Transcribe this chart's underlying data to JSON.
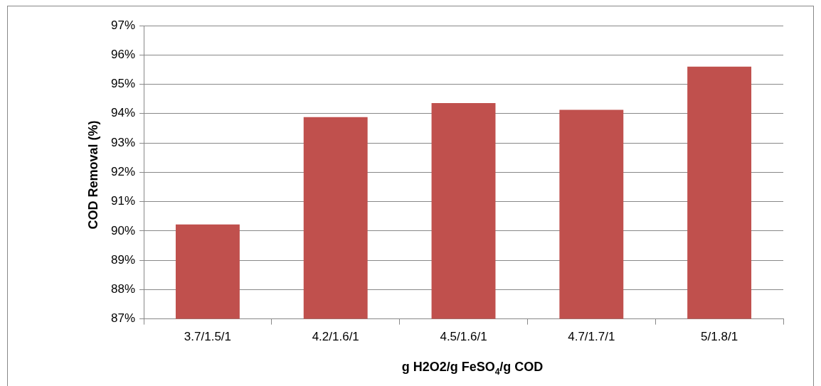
{
  "chart_data": {
    "type": "bar",
    "categories": [
      "3.7/1.5/1",
      "4.2/1.6/1",
      "4.5/1.6/1",
      "4.7/1.7/1",
      "5/1.8/1"
    ],
    "values": [
      90.22,
      93.88,
      94.36,
      94.13,
      95.6
    ],
    "color": "#c0504d",
    "xlabel": "g H2O2/g FeSO$_{4}$/g COD",
    "ylabel": "COD Removal (%)",
    "ylim": [
      87,
      97
    ],
    "yticks": [
      {
        "value": 87,
        "label": "87%"
      },
      {
        "value": 88,
        "label": "88%"
      },
      {
        "value": 89,
        "label": "89%"
      },
      {
        "value": 90,
        "label": "90%"
      },
      {
        "value": 91,
        "label": "91%"
      },
      {
        "value": 92,
        "label": "92%"
      },
      {
        "value": 93,
        "label": "93%"
      },
      {
        "value": 94,
        "label": "94%"
      },
      {
        "value": 95,
        "label": "95%"
      },
      {
        "value": 96,
        "label": "96%"
      },
      {
        "value": 97,
        "label": "97%"
      }
    ],
    "grid": "y",
    "legend": false
  }
}
